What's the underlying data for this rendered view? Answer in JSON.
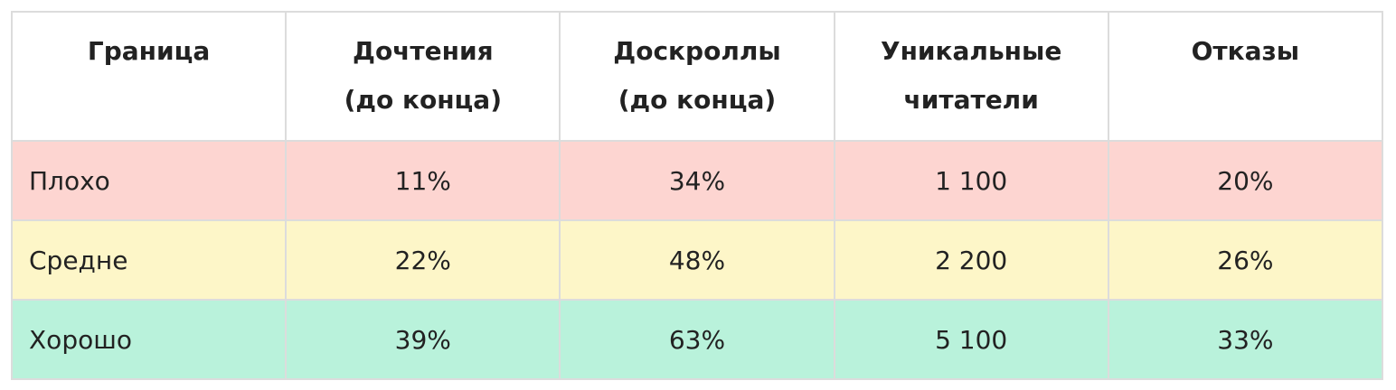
{
  "table": {
    "header": [
      [
        "Граница"
      ],
      [
        "Дочтения",
        "(до конца)"
      ],
      [
        "Доскроллы",
        "(до конца)"
      ],
      [
        "Уникальные",
        "читатели"
      ],
      [
        "Отказы"
      ]
    ],
    "rows": [
      [
        "Плохо",
        "11%",
        "34%",
        "1 100",
        "20%"
      ],
      [
        "Средне",
        "22%",
        "48%",
        "2 200",
        "26%"
      ],
      [
        "Хорошо",
        "39%",
        "63%",
        "5 100",
        "33%"
      ]
    ]
  }
}
